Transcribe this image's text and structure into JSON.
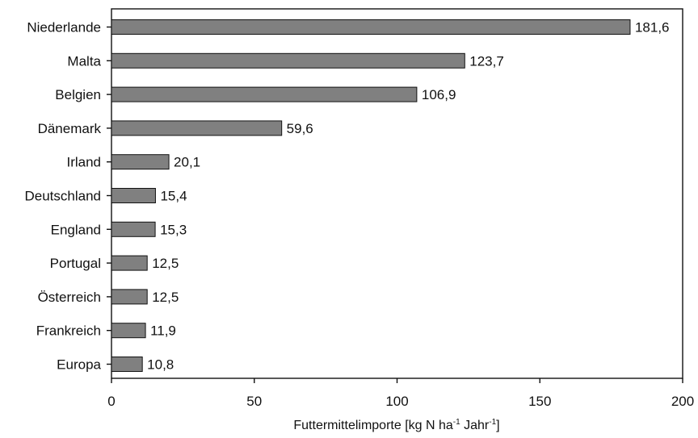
{
  "chart_data": {
    "type": "bar",
    "orientation": "horizontal",
    "categories": [
      "Niederlande",
      "Malta",
      "Belgien",
      "Dänemark",
      "Irland",
      "Deutschland",
      "England",
      "Portugal",
      "Österreich",
      "Frankreich",
      "Europa"
    ],
    "values": [
      181.6,
      123.7,
      106.9,
      59.6,
      20.1,
      15.4,
      15.3,
      12.5,
      12.5,
      11.9,
      10.8
    ],
    "value_labels": [
      "181,6",
      "123,7",
      "106,9",
      "59,6",
      "20,1",
      "15,4",
      "15,3",
      "12,5",
      "12,5",
      "11,9",
      "10,8"
    ],
    "xlabel": {
      "main": "Futtermittelimporte [kg N ha",
      "sup1": "-1",
      "mid": " Jahr",
      "sup2": "-1",
      "end": "]"
    },
    "xlim": [
      0,
      200
    ],
    "xticks": [
      0,
      50,
      100,
      150,
      200
    ],
    "xtick_labels": [
      "0",
      "50",
      "100",
      "150",
      "200"
    ],
    "grid": false,
    "bar_color": "#808080",
    "edge_color": "#111111"
  }
}
